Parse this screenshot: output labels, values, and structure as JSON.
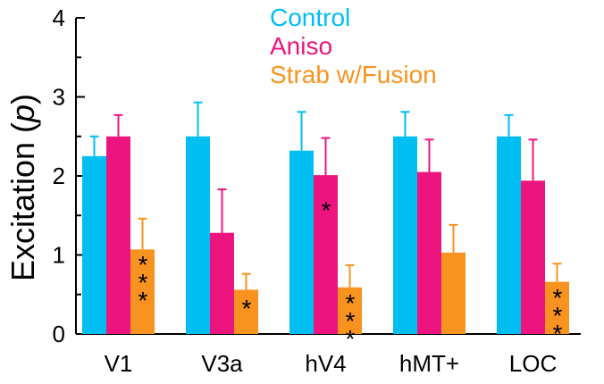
{
  "chart_data": {
    "type": "bar",
    "title": "",
    "xlabel": "",
    "ylabel": "Excitation (p)",
    "ylabel_main": "Excitation (",
    "ylabel_italic": "p",
    "ylabel_close": ")",
    "ylim": [
      0,
      4
    ],
    "yticks": [
      "0",
      "1",
      "2",
      "3",
      "4"
    ],
    "legend_position": "top-center",
    "categories": [
      "V1",
      "V3a",
      "hV4",
      "hMT+",
      "LOC"
    ],
    "series": [
      {
        "name": "Control",
        "color": "#00bdf2",
        "values": [
          2.25,
          2.5,
          2.32,
          2.5,
          2.5
        ],
        "error_upper": [
          2.5,
          2.93,
          2.81,
          2.81,
          2.77
        ]
      },
      {
        "name": "Aniso",
        "color": "#ec147f",
        "values": [
          2.5,
          1.28,
          2.01,
          2.05,
          1.94
        ],
        "error_upper": [
          2.77,
          1.83,
          2.48,
          2.46,
          2.46
        ]
      },
      {
        "name": "Strab w/Fusion",
        "color": "#f7931e",
        "values": [
          1.07,
          0.56,
          0.59,
          1.03,
          0.66
        ],
        "error_upper": [
          1.46,
          0.76,
          0.87,
          1.38,
          0.89
        ]
      }
    ],
    "significance": [
      {
        "category": "V1",
        "series": "Strab w/Fusion",
        "stars": "***"
      },
      {
        "category": "V3a",
        "series": "Strab w/Fusion",
        "stars": "*"
      },
      {
        "category": "hV4",
        "series": "Aniso",
        "stars": "*"
      },
      {
        "category": "hV4",
        "series": "Strab w/Fusion",
        "stars": "***"
      },
      {
        "category": "LOC",
        "series": "Strab w/Fusion",
        "stars": "***"
      }
    ]
  }
}
